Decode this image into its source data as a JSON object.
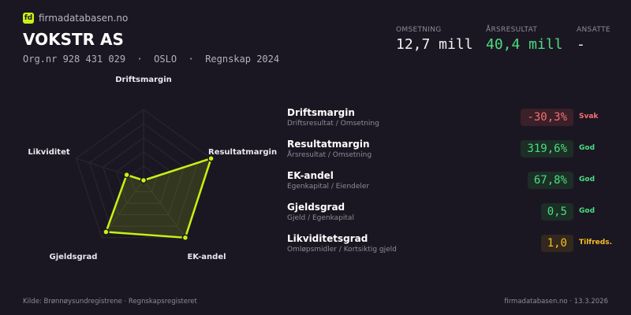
{
  "brand": {
    "logo": "fd",
    "name": "firmadatabasen.no"
  },
  "company": {
    "name": "VOKSTR AS",
    "meta": "Org.nr 928 431 029  ·  OSLO  ·  Regnskap 2024"
  },
  "kpis": [
    {
      "label": "OMSETNING",
      "value": "12,7 mill",
      "color": "#f2f2f2"
    },
    {
      "label": "ÅRSRESULTAT",
      "value": "40,4 mill",
      "color": "#4ade80"
    },
    {
      "label": "ANSATTE",
      "value": "-",
      "color": "#f2f2f2"
    }
  ],
  "chart_data": {
    "type": "radar",
    "axes": [
      "Driftsmargin",
      "Resultatmargin",
      "EK-andel",
      "Gjeldsgrad",
      "Likviditet"
    ],
    "values": [
      0.0,
      1.0,
      1.0,
      0.9,
      0.25
    ],
    "range": [
      0,
      1
    ],
    "rings": 5,
    "color": "#c8f215"
  },
  "metrics": [
    {
      "name": "Driftsmargin",
      "desc": "Driftsresultat / Omsetning",
      "value": "-30,3%",
      "status": "Svak",
      "color": "#f87171",
      "bg": "#3a2028"
    },
    {
      "name": "Resultatmargin",
      "desc": "Årsresultat / Omsetning",
      "value": "319,6%",
      "status": "God",
      "color": "#4ade80",
      "bg": "#1c2e26"
    },
    {
      "name": "EK-andel",
      "desc": "Egenkapital / Eiendeler",
      "value": "67,8%",
      "status": "God",
      "color": "#4ade80",
      "bg": "#1c2e26"
    },
    {
      "name": "Gjeldsgrad",
      "desc": "Gjeld / Egenkapital",
      "value": "0,5",
      "status": "God",
      "color": "#4ade80",
      "bg": "#1c2e26"
    },
    {
      "name": "Likviditetsgrad",
      "desc": "Omløpsmidler / Kortsiktig gjeld",
      "value": "1,0",
      "status": "Tilfreds.",
      "color": "#fbbf24",
      "bg": "#33281e"
    }
  ],
  "footer": {
    "source": "Kilde: Brønnøysundregistrene · Regnskapsregisteret",
    "site": "firmadatabasen.no · 13.3.2026"
  }
}
